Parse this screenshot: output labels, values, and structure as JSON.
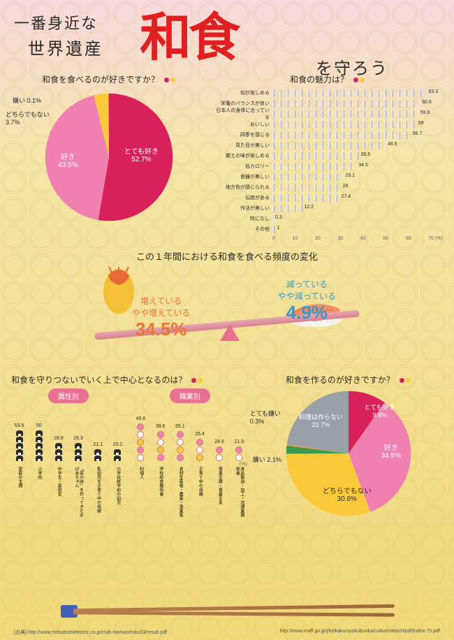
{
  "title": {
    "line1": "一番身近な",
    "line2": "世界遺産",
    "big": "和食",
    "line3": "を守ろう"
  },
  "colors": {
    "pink": "#f080b0",
    "magenta": "#d8205a",
    "yellow": "#fbca3a",
    "green": "#3a9a50",
    "gray": "#9aa0a8",
    "orange": "#e87838"
  },
  "pie1": {
    "title": "和食を食べるのが好きですか？",
    "slices": [
      {
        "label": "とても好き",
        "pct": 52.7,
        "color": "#d8205a"
      },
      {
        "label": "好き",
        "pct": 43.5,
        "color": "#f080b0"
      },
      {
        "label": "どちらでもない",
        "pct": 3.7,
        "color": "#fbca3a"
      },
      {
        "label": "嫌い",
        "pct": 0.1,
        "color": "#3a9a50"
      }
    ]
  },
  "barchart": {
    "title": "和食の魅力は？",
    "max": 70,
    "ticks": [
      0,
      10,
      20,
      30,
      40,
      50,
      60,
      70
    ],
    "unit": "(%)",
    "rows": [
      {
        "label": "旬が楽しめる",
        "val": 63.3
      },
      {
        "label": "栄養のバランスが良い",
        "val": 60.6
      },
      {
        "label": "日本人の身体に合っている",
        "val": 59.9
      },
      {
        "label": "おいしい",
        "val": 59.0
      },
      {
        "label": "四季を感じる",
        "val": 56.7
      },
      {
        "label": "見た目が美しい",
        "val": 46.5
      },
      {
        "label": "郷土の味が楽しめる",
        "val": 35.5
      },
      {
        "label": "低カロリー",
        "val": 34.5
      },
      {
        "label": "食器が美しい",
        "val": 29.1
      },
      {
        "label": "地方色が感じられる",
        "val": 28.0
      },
      {
        "label": "伝統がある",
        "val": 27.4
      },
      {
        "label": "作法が美しい",
        "val": 12.2
      },
      {
        "label": "特になし",
        "val": 0.3
      },
      {
        "label": "その他",
        "val": 1.0
      }
    ]
  },
  "seesaw": {
    "title": "この１年間における和食を食べる頻度の変化",
    "left": {
      "line1": "増えている",
      "line2": "やや増えている",
      "pct": "34.5%",
      "color": "#e87838"
    },
    "right": {
      "line1": "減っている",
      "line2": "やや減っている",
      "pct": "4.9%",
      "color": "#3a98c8"
    }
  },
  "vbars": {
    "title": "和食を守りつないでいく上で中心となるのは？",
    "badge1": "属性別",
    "badge2": "職業別",
    "unit": "(%)",
    "group1": [
      {
        "label": "家庭の主婦",
        "val": 53.5
      },
      {
        "label": "小学校",
        "val": 50.0
      },
      {
        "label": "中学生・高校生",
        "val": 28.9
      },
      {
        "label": "「家の味」を作ってきたおばあちゃん",
        "val": 26.3
      },
      {
        "label": "乳幼児を子育て中の母親",
        "val": 21.1
      },
      {
        "label": "小学校就学前の幼児",
        "val": 20.2
      }
    ],
    "group2": [
      {
        "label": "料理人",
        "val": 45.6
      },
      {
        "label": "学校給食関係者",
        "val": 38.6
      },
      {
        "label": "食材生産者・農業・漁業等",
        "val": 35.1
      },
      {
        "label": "子育て中の母親",
        "val": 25.4
      },
      {
        "label": "専業主婦・専業主夫",
        "val": 24.6
      },
      {
        "label": "食品製造・加工・流通業関係者",
        "val": 21.9
      }
    ],
    "ball_colors": [
      "#f080b0",
      "#ffffff",
      "#fbca3a"
    ]
  },
  "pie2": {
    "title": "和食を作るのが好きですか？",
    "slices": [
      {
        "label": "とても好き",
        "pct": 9.8,
        "color": "#d8205a"
      },
      {
        "label": "好き",
        "pct": 34.5,
        "color": "#f080b0"
      },
      {
        "label": "どちらでもない",
        "pct": 30.6,
        "color": "#fbca3a"
      },
      {
        "label": "嫌い",
        "pct": 2.1,
        "color": "#3a9a50"
      },
      {
        "label": "とても嫌い",
        "pct": 0.3,
        "color": "#ff9830"
      },
      {
        "label": "料理は作らない",
        "pct": 22.7,
        "color": "#9aa0a8"
      }
    ]
  },
  "footer": {
    "left": "[出典] http://www.mitsubishielectric.co.jp/club-me/washoku03/result.pdf",
    "right": "http://www.maff.go.jp/j/keikaku/syokubunka/culture/attach/pdf/index-75.pdf"
  }
}
